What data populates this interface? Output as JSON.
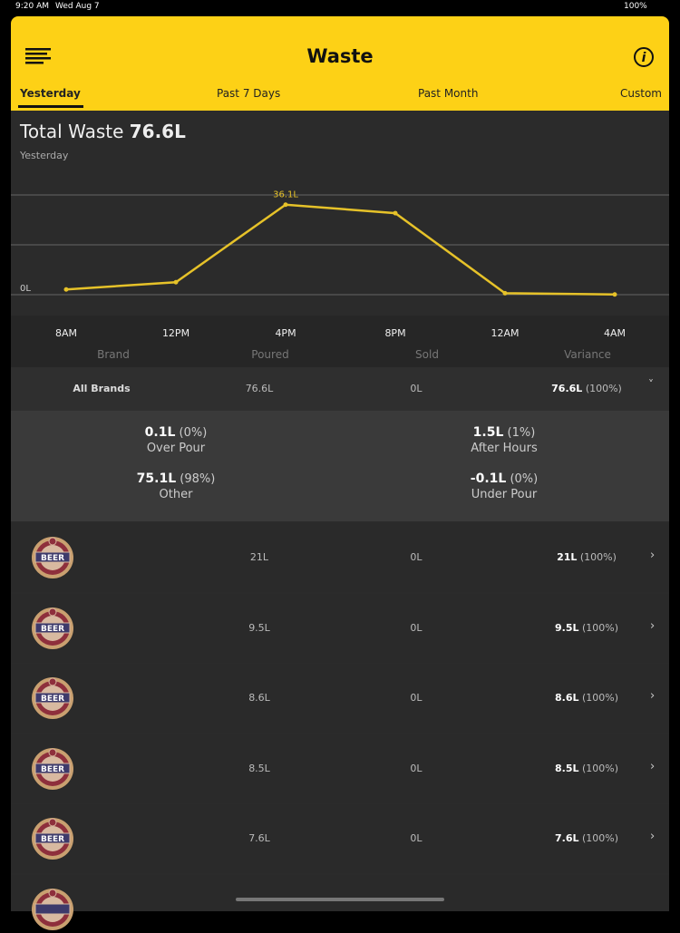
{
  "status": {
    "time": "9:20 AM",
    "date": "Wed Aug 7",
    "battery": "100%"
  },
  "header": {
    "title": "Waste",
    "tabs": [
      "Yesterday",
      "Past 7 Days",
      "Past Month",
      "Custom"
    ]
  },
  "summary": {
    "label": "Total Waste",
    "value": "76.6L",
    "period": "Yesterday"
  },
  "chart_data": {
    "type": "line",
    "categories": [
      "8AM",
      "12PM",
      "4PM",
      "8PM",
      "12AM",
      "4AM"
    ],
    "values": [
      2.1,
      5,
      36.1,
      32.7,
      0.6,
      0.1
    ],
    "value_labels": [
      null,
      null,
      "36.1L",
      null,
      null,
      null
    ],
    "color": "#e6c229",
    "ylim": [
      -4,
      44
    ],
    "yticks": [
      {
        "value": 0,
        "label": "0L"
      },
      {
        "value": 20,
        "label": null
      },
      {
        "value": 40,
        "label": null
      }
    ],
    "grid": true
  },
  "table": {
    "columns": [
      "Brand",
      "Poured",
      "Sold",
      "Variance"
    ],
    "total": {
      "brand": "All Brands",
      "poured": "76.6L",
      "sold": "0L",
      "variance": "76.6L",
      "pct": "(100%)"
    },
    "breakdown": [
      {
        "value": "0.1L",
        "pct": "(0%)",
        "label": "Over Pour"
      },
      {
        "value": "1.5L",
        "pct": "(1%)",
        "label": "After Hours"
      },
      {
        "value": "75.1L",
        "pct": "(98%)",
        "label": "Other"
      },
      {
        "value": "-0.1L",
        "pct": "(0%)",
        "label": "Under Pour"
      }
    ],
    "badge_text": "BEER",
    "rows": [
      {
        "poured": "21L",
        "sold": "0L",
        "variance": "21L",
        "pct": "(100%)"
      },
      {
        "poured": "9.5L",
        "sold": "0L",
        "variance": "9.5L",
        "pct": "(100%)"
      },
      {
        "poured": "8.6L",
        "sold": "0L",
        "variance": "8.6L",
        "pct": "(100%)"
      },
      {
        "poured": "8.5L",
        "sold": "0L",
        "variance": "8.5L",
        "pct": "(100%)"
      },
      {
        "poured": "7.6L",
        "sold": "0L",
        "variance": "7.6L",
        "pct": "(100%)"
      }
    ]
  }
}
